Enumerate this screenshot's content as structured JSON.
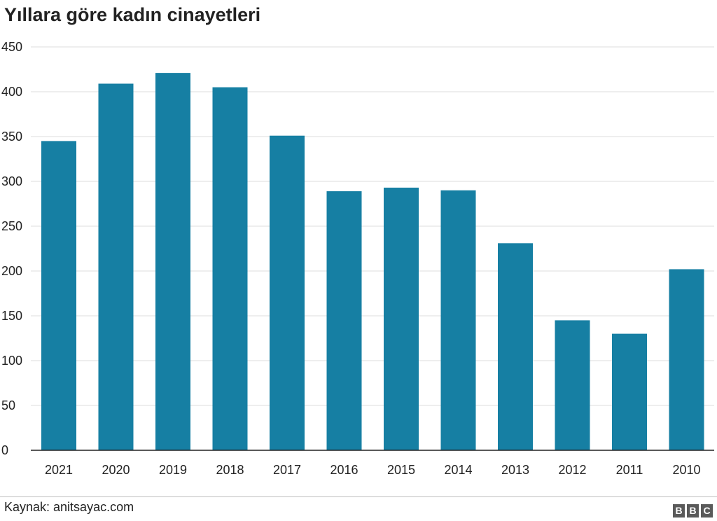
{
  "title": "Yıllara göre kadın cinayetleri",
  "source": "Kaynak: anitsayac.com",
  "logo": [
    "B",
    "B",
    "C"
  ],
  "colors": {
    "bar": "#167fa3",
    "grid": "#dcdcdc",
    "axis": "#222222"
  },
  "chart_data": {
    "type": "bar",
    "title": "Yıllara göre kadın cinayetleri",
    "categories": [
      "2021",
      "2020",
      "2019",
      "2018",
      "2017",
      "2016",
      "2015",
      "2014",
      "2013",
      "2012",
      "2011",
      "2010"
    ],
    "values": [
      345,
      409,
      421,
      405,
      351,
      289,
      293,
      290,
      231,
      145,
      130,
      202
    ],
    "ylim": [
      0,
      450
    ],
    "yticks": [
      0,
      50,
      100,
      150,
      200,
      250,
      300,
      350,
      400,
      450
    ],
    "grid": true,
    "legend": "none"
  }
}
